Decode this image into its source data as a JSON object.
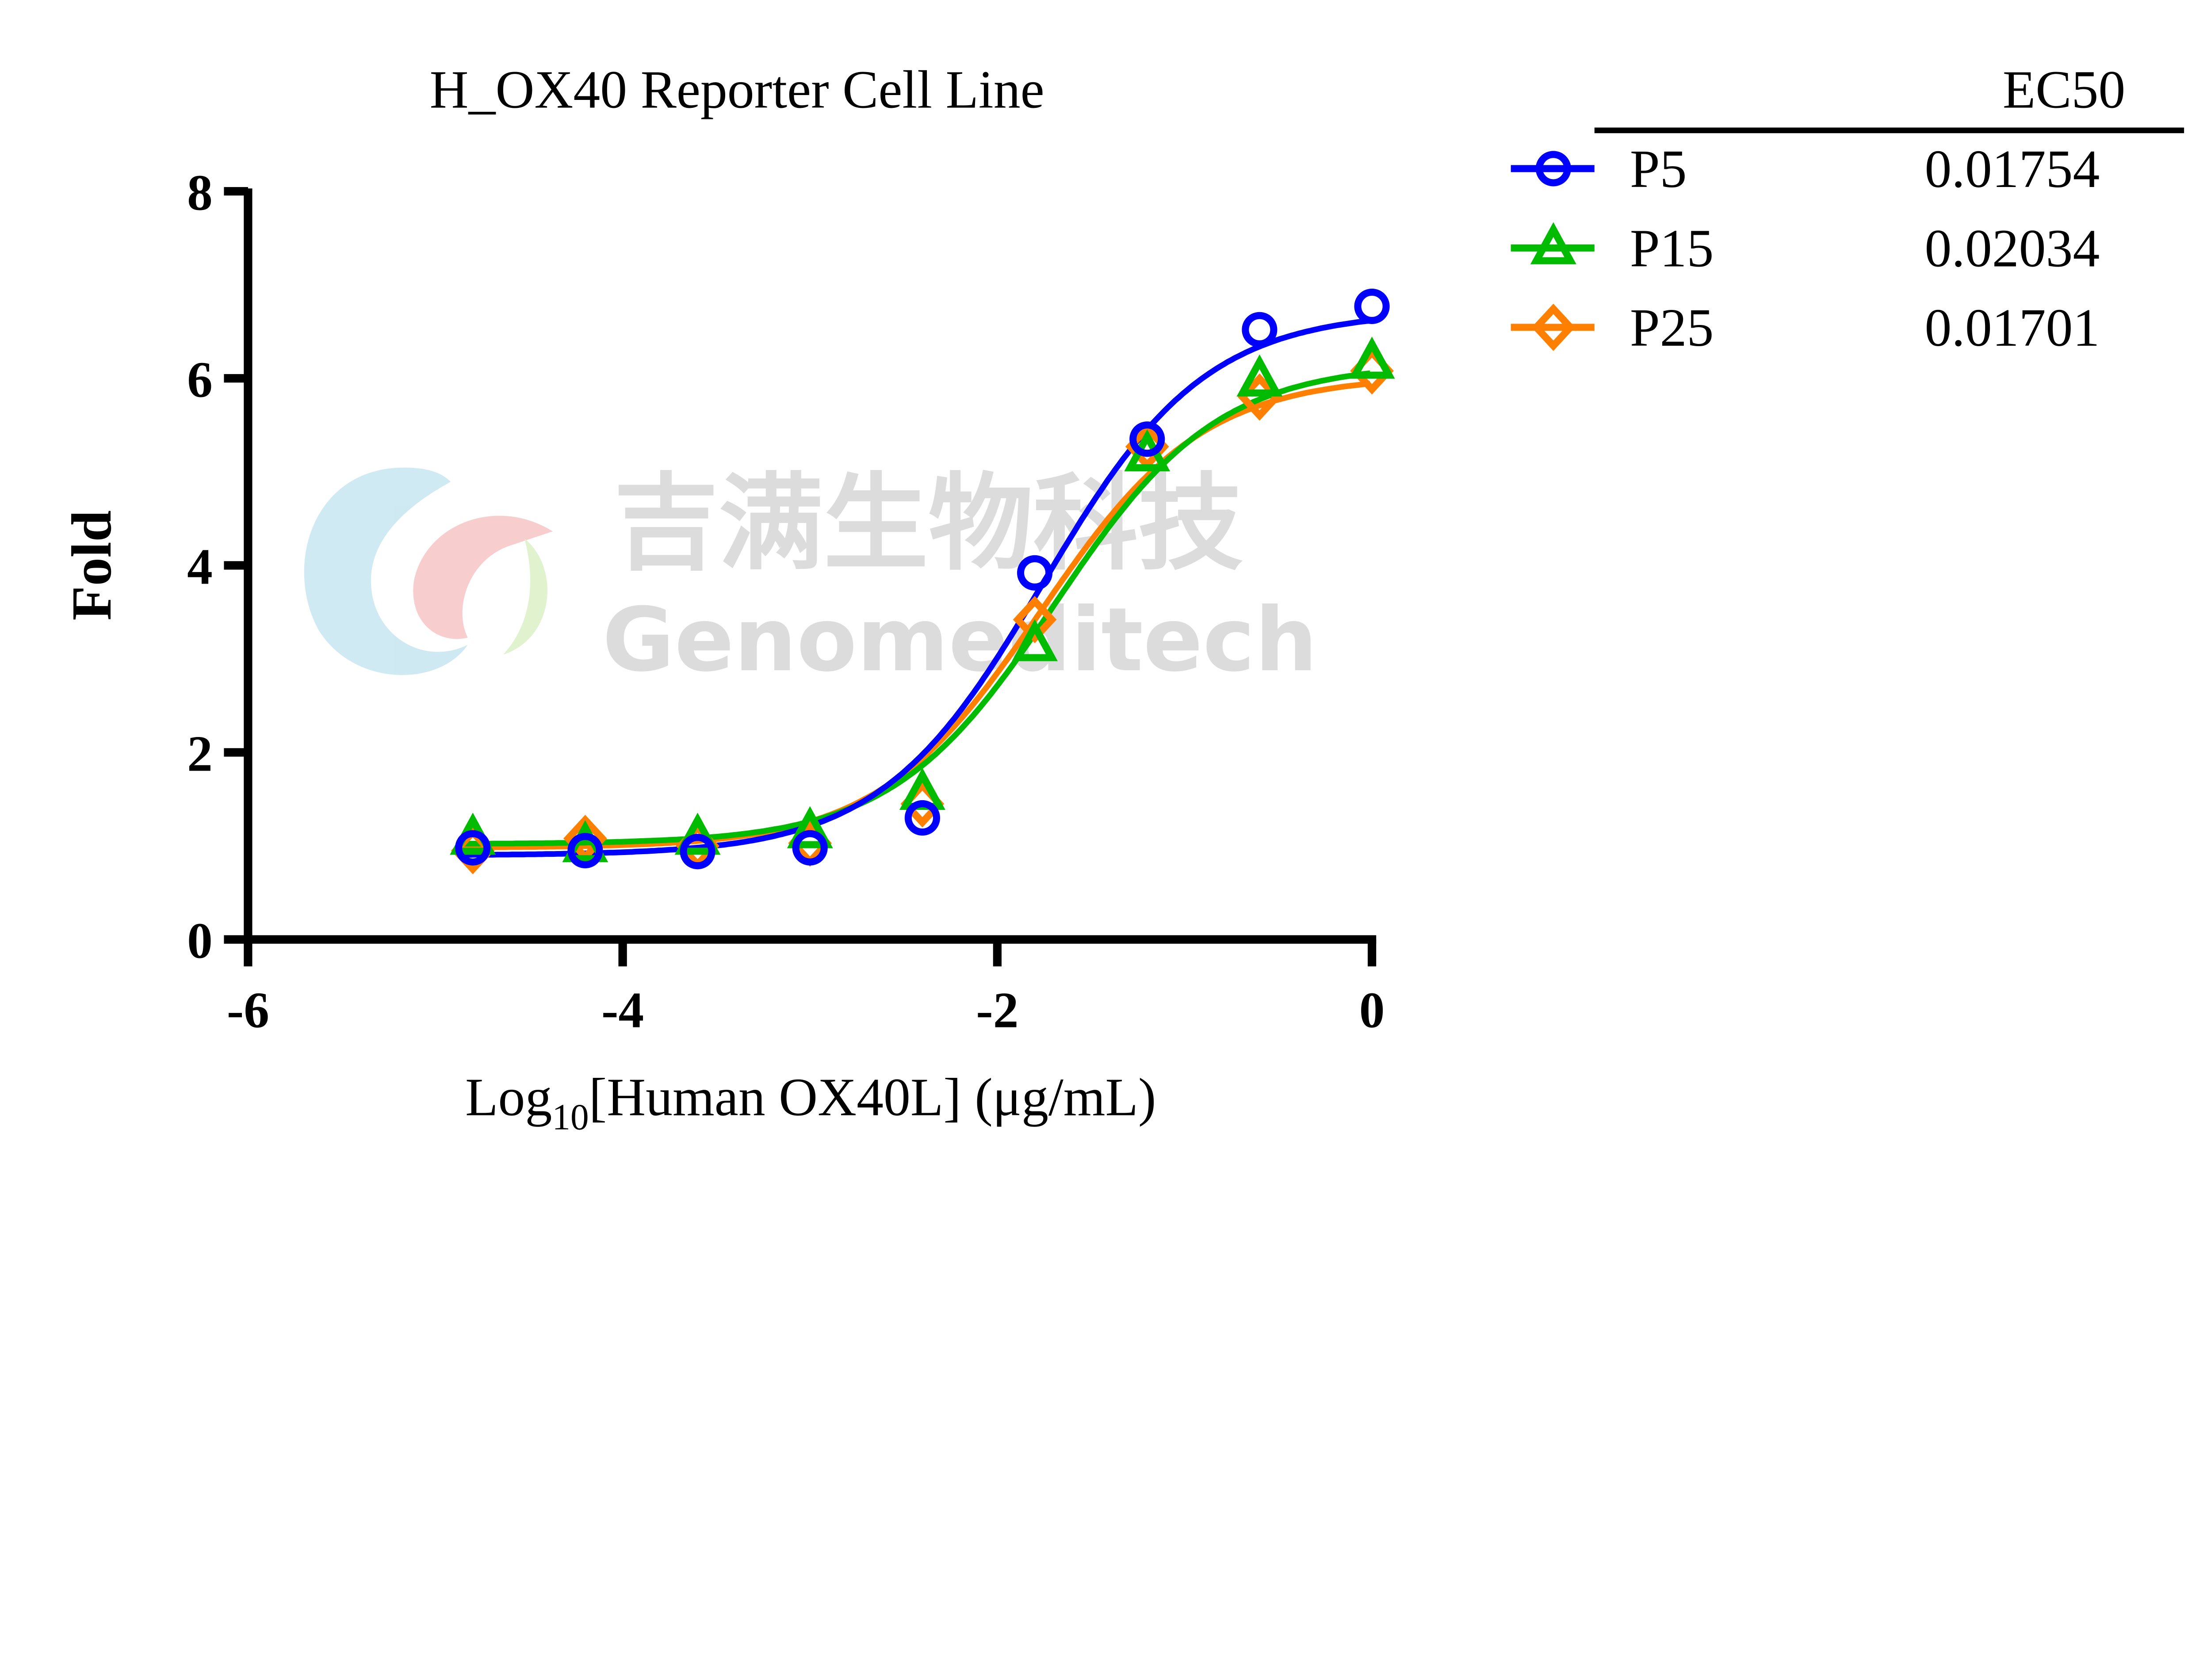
{
  "chart_data": {
    "type": "line",
    "title": "H_OX40 Reporter Cell Line",
    "xlabel_prefix": "Log",
    "xlabel_sub": "10",
    "xlabel_suffix": "[Human OX40L] (μg/mL)",
    "ylabel": "Fold",
    "xlim": [
      -6,
      0
    ],
    "ylim": [
      0,
      8
    ],
    "xticks": [
      -6,
      -4,
      -2,
      0
    ],
    "xtick_labels": [
      "-6",
      "-4",
      "-2",
      "0"
    ],
    "yticks": [
      0,
      2,
      4,
      6,
      8
    ],
    "ytick_labels": [
      "0",
      "2",
      "4",
      "6",
      "8"
    ],
    "grid": false,
    "legend_placement": "right",
    "legend_header": "EC50",
    "x": [
      -4.8,
      -4.2,
      -3.6,
      -3.0,
      -2.4,
      -1.8,
      -1.2,
      -0.6,
      0
    ],
    "series": [
      {
        "name": "P5",
        "ec50": "0.01754",
        "color": "#0000FF",
        "marker": "circle",
        "values": [
          0.98,
          0.95,
          0.94,
          0.98,
          1.3,
          3.92,
          5.35,
          6.52,
          6.77
        ],
        "fit": {
          "bottom": 0.9,
          "top": 6.72,
          "hill": 1.0
        }
      },
      {
        "name": "P15",
        "ec50": "0.02034",
        "color": "#00BB00",
        "marker": "triangle",
        "values": [
          1.08,
          1.0,
          1.08,
          1.15,
          1.56,
          3.15,
          5.18,
          5.98,
          6.17
        ],
        "fit": {
          "bottom": 1.02,
          "top": 6.16,
          "hill": 1.0
        }
      },
      {
        "name": "P25",
        "ec50": "0.01701",
        "color": "#FF8000",
        "marker": "diamond",
        "values": [
          0.95,
          1.08,
          1.0,
          1.03,
          1.45,
          3.42,
          5.27,
          5.8,
          6.08
        ],
        "fit": {
          "bottom": 0.98,
          "top": 6.03,
          "hill": 1.0
        }
      }
    ]
  },
  "watermark": {
    "cn": "吉满生物科技",
    "en": "Genomeditech"
  }
}
